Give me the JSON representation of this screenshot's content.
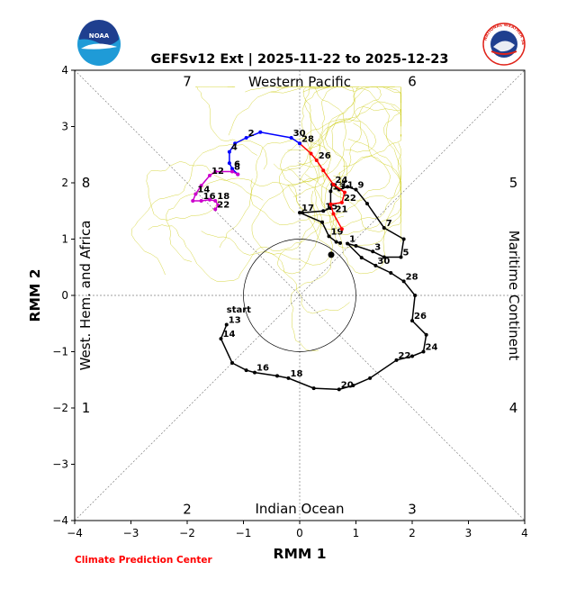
{
  "title": "GEFSv12 Ext | 2025-11-22 to 2025-12-23",
  "credit": "Climate Prediction Center",
  "logos": {
    "noaa": {
      "text": "NOAA",
      "colors": [
        "#1f3f8f",
        "#2a9fd6",
        "#ffffff"
      ]
    },
    "nws": {
      "text": "NATIONAL WEATHER SERVICE",
      "colors": [
        "#e0241b",
        "#1f3f8f",
        "#ffffff"
      ]
    }
  },
  "chart_data": {
    "type": "line",
    "xlabel": "RMM 1",
    "ylabel": "RMM 2",
    "xlim": [
      -4,
      4
    ],
    "ylim": [
      -4,
      4
    ],
    "xticks": [
      "−4",
      "−3",
      "−2",
      "−1",
      "0",
      "1",
      "2",
      "3",
      "4"
    ],
    "yticks": [
      "−4",
      "−3",
      "−2",
      "−1",
      "0",
      "1",
      "2",
      "3",
      "4"
    ],
    "unit_circle_radius": 1,
    "region_labels": {
      "top": "Western Pacific",
      "bottom": "Indian Ocean",
      "left": "West. Hem. and Africa",
      "right": "Maritime Continent"
    },
    "phase_labels": [
      {
        "phase": "1",
        "x": -3.8,
        "y": -2.0
      },
      {
        "phase": "2",
        "x": -2.0,
        "y": -3.8
      },
      {
        "phase": "3",
        "x": 2.0,
        "y": -3.8
      },
      {
        "phase": "4",
        "x": 3.8,
        "y": -2.0
      },
      {
        "phase": "5",
        "x": 3.8,
        "y": 2.0
      },
      {
        "phase": "6",
        "x": 2.0,
        "y": 3.8
      },
      {
        "phase": "7",
        "x": -2.0,
        "y": 3.8
      },
      {
        "phase": "8",
        "x": -3.8,
        "y": 2.0
      }
    ],
    "series": [
      {
        "color": "#000000",
        "points": [
          {
            "x": -1.3,
            "y": -0.52,
            "label": "13"
          },
          {
            "x": -1.4,
            "y": -0.77,
            "label": "14"
          },
          {
            "x": -1.2,
            "y": -1.2
          },
          {
            "x": -0.95,
            "y": -1.33
          },
          {
            "x": -0.8,
            "y": -1.37,
            "label": "16"
          },
          {
            "x": -0.4,
            "y": -1.43
          },
          {
            "x": -0.2,
            "y": -1.47,
            "label": "18"
          },
          {
            "x": 0.25,
            "y": -1.65
          },
          {
            "x": 0.7,
            "y": -1.67,
            "label": "20"
          },
          {
            "x": 0.95,
            "y": -1.6
          },
          {
            "x": 1.25,
            "y": -1.47
          },
          {
            "x": 1.72,
            "y": -1.15,
            "label": "22"
          },
          {
            "x": 2.0,
            "y": -1.08
          },
          {
            "x": 2.2,
            "y": -1.0,
            "label": "24"
          },
          {
            "x": 2.25,
            "y": -0.7
          },
          {
            "x": 2.0,
            "y": -0.45,
            "label": "26"
          },
          {
            "x": 2.05,
            "y": 0.0
          },
          {
            "x": 1.85,
            "y": 0.25,
            "label": "28"
          },
          {
            "x": 1.62,
            "y": 0.4
          },
          {
            "x": 1.35,
            "y": 0.53,
            "label": "30"
          },
          {
            "x": 1.1,
            "y": 0.67
          },
          {
            "x": 0.85,
            "y": 0.92,
            "label": "1"
          },
          {
            "x": 1.0,
            "y": 0.88
          },
          {
            "x": 1.3,
            "y": 0.78,
            "label": "3"
          },
          {
            "x": 1.5,
            "y": 0.68
          },
          {
            "x": 1.8,
            "y": 0.68,
            "label": "5"
          },
          {
            "x": 1.85,
            "y": 1.0
          },
          {
            "x": 1.5,
            "y": 1.2,
            "label": "7"
          },
          {
            "x": 1.2,
            "y": 1.63
          },
          {
            "x": 1.0,
            "y": 1.88,
            "label": "9"
          },
          {
            "x": 0.85,
            "y": 1.93
          },
          {
            "x": 0.7,
            "y": 1.88,
            "label": "11"
          },
          {
            "x": 0.58,
            "y": 1.97
          },
          {
            "x": 0.55,
            "y": 1.85,
            "label": "13"
          },
          {
            "x": 0.55,
            "y": 1.55
          },
          {
            "x": 0.42,
            "y": 1.5,
            "label": "15"
          },
          {
            "x": 0.05,
            "y": 1.47
          },
          {
            "x": 0.0,
            "y": 1.47,
            "label": "17"
          },
          {
            "x": 0.4,
            "y": 1.3
          },
          {
            "x": 0.52,
            "y": 1.05,
            "label": "19"
          },
          {
            "x": 0.65,
            "y": 0.95
          },
          {
            "x": 0.72,
            "y": 0.93
          }
        ]
      },
      {
        "color": "#ff0000",
        "points": [
          {
            "x": 0.75,
            "y": 1.18
          },
          {
            "x": 0.6,
            "y": 1.45,
            "label": "21"
          },
          {
            "x": 0.55,
            "y": 1.62
          },
          {
            "x": 0.75,
            "y": 1.65,
            "label": "22"
          },
          {
            "x": 0.8,
            "y": 1.83
          },
          {
            "x": 0.6,
            "y": 1.97,
            "label": "24"
          },
          {
            "x": 0.42,
            "y": 2.22
          },
          {
            "x": 0.3,
            "y": 2.4,
            "label": "26"
          },
          {
            "x": 0.2,
            "y": 2.52
          },
          {
            "x": 0.0,
            "y": 2.7,
            "label": "28"
          }
        ]
      },
      {
        "color": "#0000ff",
        "points": [
          {
            "x": 0.0,
            "y": 2.7
          },
          {
            "x": -0.15,
            "y": 2.8,
            "label": "30"
          },
          {
            "x": -0.7,
            "y": 2.9
          },
          {
            "x": -0.95,
            "y": 2.8,
            "label": "2"
          },
          {
            "x": -1.15,
            "y": 2.7
          },
          {
            "x": -1.25,
            "y": 2.55,
            "label": "4"
          },
          {
            "x": -1.25,
            "y": 2.35
          },
          {
            "x": -1.2,
            "y": 2.25,
            "label": "6"
          },
          {
            "x": -1.1,
            "y": 2.15
          }
        ]
      },
      {
        "color": "#cc00cc",
        "points": [
          {
            "x": -1.1,
            "y": 2.15
          },
          {
            "x": -1.2,
            "y": 2.2,
            "label": "8"
          },
          {
            "x": -1.5,
            "y": 2.2
          },
          {
            "x": -1.6,
            "y": 2.13,
            "label": "12"
          },
          {
            "x": -1.75,
            "y": 1.95
          },
          {
            "x": -1.85,
            "y": 1.8,
            "label": "14"
          },
          {
            "x": -1.9,
            "y": 1.68
          },
          {
            "x": -1.75,
            "y": 1.68,
            "label": "16"
          },
          {
            "x": -1.6,
            "y": 1.7
          },
          {
            "x": -1.5,
            "y": 1.68,
            "label": "18"
          },
          {
            "x": -1.45,
            "y": 1.6
          },
          {
            "x": -1.5,
            "y": 1.53,
            "label": "22"
          }
        ]
      }
    ],
    "annotations": [
      {
        "text": "start",
        "x": -1.3,
        "y": -0.3
      }
    ]
  }
}
